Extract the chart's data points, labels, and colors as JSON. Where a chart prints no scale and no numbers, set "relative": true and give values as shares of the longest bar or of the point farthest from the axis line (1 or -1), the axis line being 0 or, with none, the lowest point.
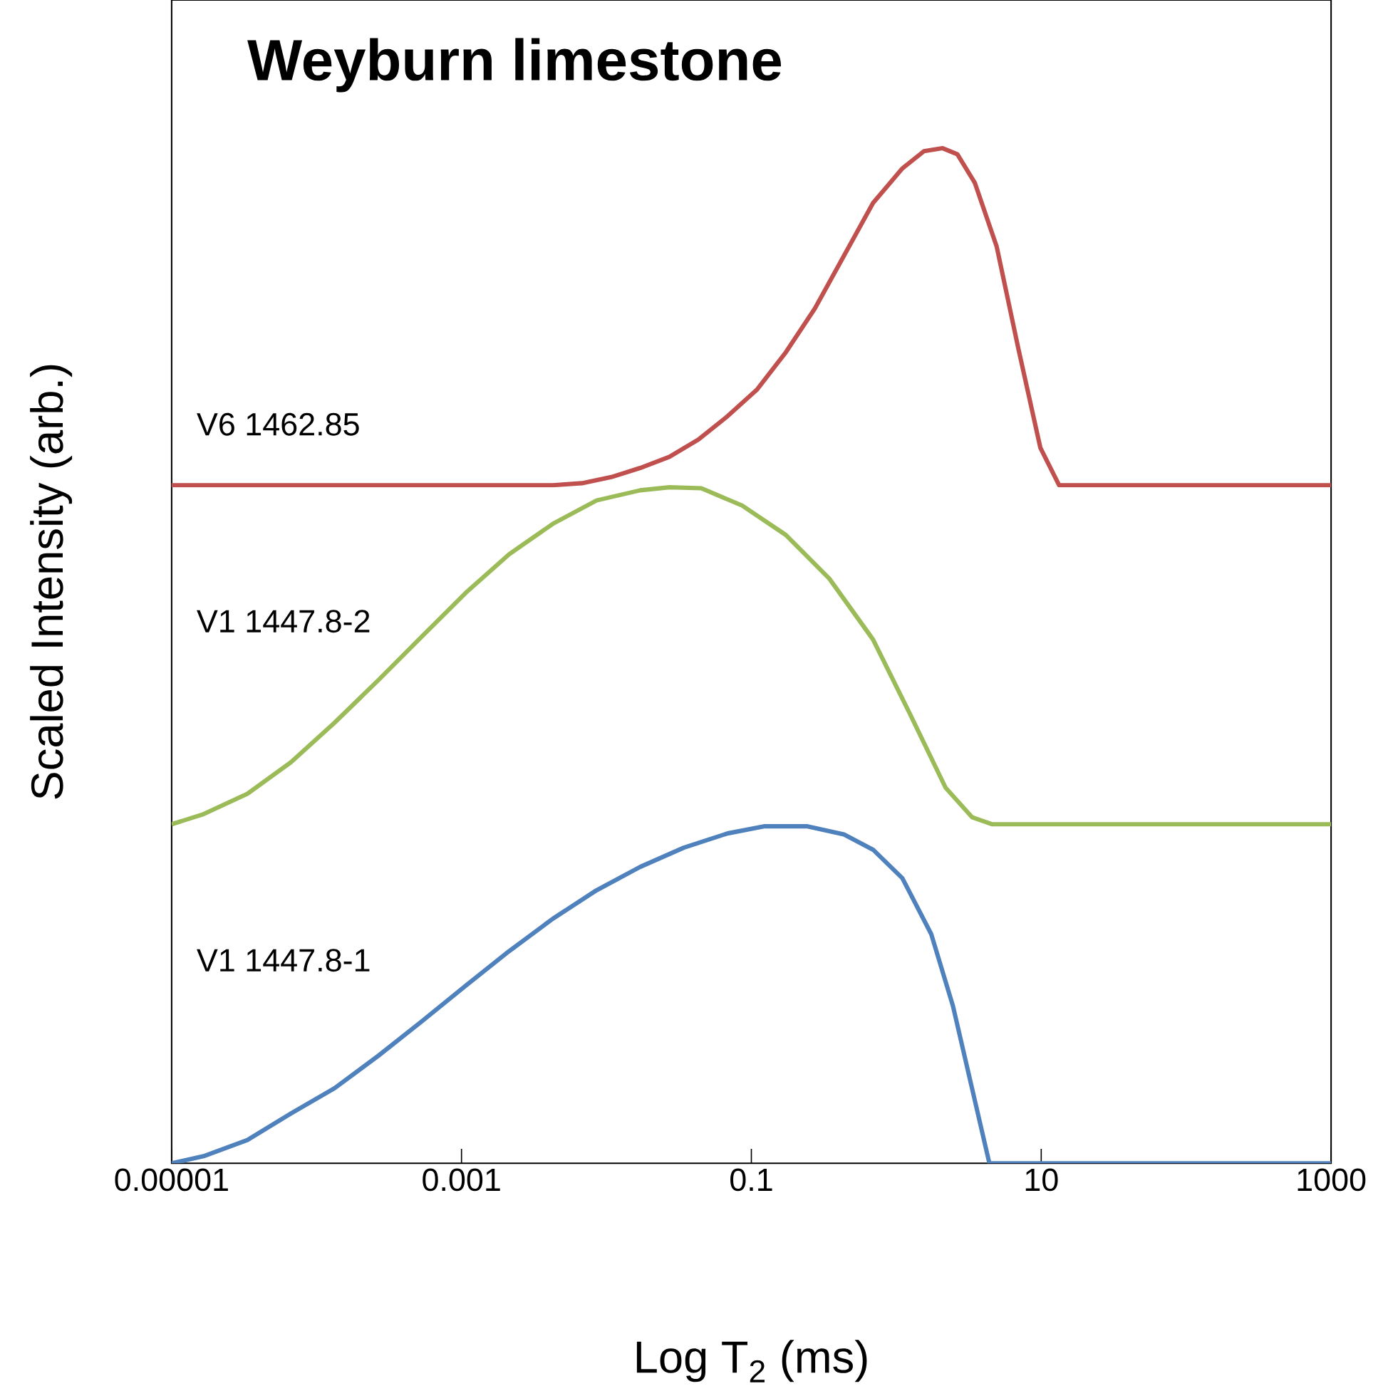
{
  "chart_data": {
    "type": "line",
    "title": "Weyburn limestone",
    "xlabel": "Log T$_{2}$ (ms)",
    "ylabel": "Scaled Intensity (arb.)",
    "relative": true,
    "log": "x",
    "xlim": [
      1e-05,
      1000
    ],
    "xticks": [
      {
        "value": 1e-05,
        "label": "0.00001"
      },
      {
        "value": 0.001,
        "label": "0.001"
      },
      {
        "value": 0.1,
        "label": "0.1"
      },
      {
        "value": 10,
        "label": "10"
      },
      {
        "value": 1000,
        "label": "1000"
      }
    ],
    "series": [
      {
        "name": "V6 1462.85",
        "color": "#c0504d",
        "x": [
          1e-05,
          0.00427,
          0.00678,
          0.0108,
          0.0171,
          0.0272,
          0.0431,
          0.0685,
          0.109,
          0.173,
          0.274,
          0.435,
          0.691,
          1.1,
          1.55,
          2.09,
          2.64,
          3.48,
          4.93,
          6.97,
          9.86,
          13.3,
          1000
        ],
        "values": [
          0.668,
          0.668,
          0.67,
          0.676,
          0.685,
          0.696,
          0.713,
          0.736,
          0.762,
          0.799,
          0.842,
          0.894,
          0.946,
          0.98,
          0.997,
          1.0,
          0.994,
          0.966,
          0.903,
          0.802,
          0.705,
          0.668,
          0.668
        ]
      },
      {
        "name": "V1 1447.8-2",
        "color": "#9bbb59",
        "x": [
          1e-05,
          1.66e-05,
          3.33e-05,
          6.65e-05,
          0.000133,
          0.000267,
          0.000533,
          0.00107,
          0.00213,
          0.00427,
          0.00855,
          0.0171,
          0.0272,
          0.0452,
          0.0863,
          0.173,
          0.345,
          0.691,
          1.23,
          2.19,
          3.33,
          4.6,
          1000
        ],
        "values": [
          0.334,
          0.344,
          0.364,
          0.395,
          0.434,
          0.476,
          0.519,
          0.562,
          0.6,
          0.63,
          0.653,
          0.663,
          0.666,
          0.665,
          0.648,
          0.619,
          0.576,
          0.516,
          0.444,
          0.37,
          0.341,
          0.334,
          0.334
        ]
      },
      {
        "name": "V1 1447.8-1",
        "color": "#4f81bd",
        "x": [
          1e-05,
          1.66e-05,
          3.33e-05,
          6.65e-05,
          0.000133,
          0.000267,
          0.000533,
          0.00107,
          0.00213,
          0.00427,
          0.00855,
          0.0171,
          0.0342,
          0.0685,
          0.122,
          0.244,
          0.435,
          0.691,
          1.1,
          1.74,
          2.46,
          3.33,
          4.39,
          1000
        ],
        "values": [
          0,
          0.007,
          0.023,
          0.049,
          0.074,
          0.106,
          0.14,
          0.175,
          0.209,
          0.241,
          0.269,
          0.292,
          0.311,
          0.325,
          0.332,
          0.332,
          0.324,
          0.309,
          0.281,
          0.226,
          0.155,
          0.074,
          0,
          0
        ]
      }
    ]
  }
}
